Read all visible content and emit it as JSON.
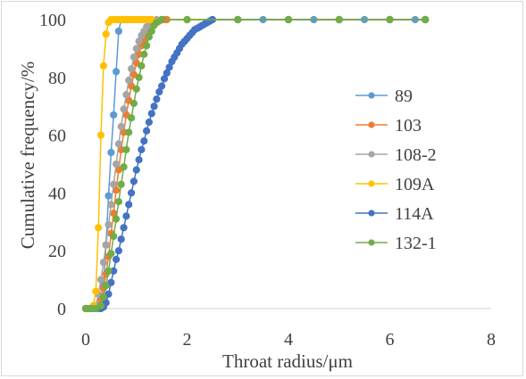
{
  "chart_data": {
    "type": "scatter",
    "xlabel": "Throat radius/μm",
    "ylabel": "Cumulative frequency/%",
    "xlim": [
      0,
      8
    ],
    "ylim": [
      0,
      100
    ],
    "x_ticks": [
      "0",
      "2",
      "4",
      "6",
      "8"
    ],
    "y_ticks": [
      "0",
      "20",
      "40",
      "60",
      "80",
      "100"
    ],
    "grid": false,
    "legend_position": "right",
    "series": [
      {
        "name": "89",
        "color": "#5b9bd5",
        "x": [
          0,
          0.05,
          0.1,
          0.15,
          0.2,
          0.25,
          0.3,
          0.35,
          0.4,
          0.45,
          0.5,
          0.55,
          0.6,
          0.65,
          0.7,
          0.75,
          0.8,
          1.0,
          1.5,
          2.0,
          2.5,
          3.0,
          3.5,
          4.0,
          4.5,
          5.0,
          5.5,
          6.0,
          6.5,
          6.7
        ],
        "y": [
          0,
          0,
          0,
          0,
          0,
          0,
          0.5,
          8,
          22,
          39,
          54,
          67,
          82,
          96,
          100,
          100,
          100,
          100,
          100,
          100,
          100,
          100,
          100,
          100,
          100,
          100,
          100,
          100,
          100,
          100
        ]
      },
      {
        "name": "103",
        "color": "#ed7d31",
        "x": [
          0,
          0.1,
          0.2,
          0.25,
          0.3,
          0.35,
          0.4,
          0.45,
          0.5,
          0.55,
          0.6,
          0.65,
          0.7,
          0.75,
          0.8,
          0.85,
          0.9,
          0.95,
          1.0,
          1.05,
          1.1,
          1.15,
          1.2,
          1.25,
          1.3,
          1.35,
          1.4,
          1.45,
          1.5,
          1.55,
          1.6,
          2.0,
          3.0,
          4.0,
          5.0,
          6.0,
          6.7
        ],
        "y": [
          0,
          0,
          0,
          1,
          3,
          7,
          12,
          18,
          26,
          33,
          41,
          48,
          55,
          61,
          67,
          72,
          77,
          81,
          85,
          88,
          91,
          93,
          95,
          96.5,
          97.5,
          98.5,
          99,
          99.5,
          100,
          100,
          100,
          100,
          100,
          100,
          100,
          100,
          100
        ]
      },
      {
        "name": "108-2",
        "color": "#a5a5a5",
        "x": [
          0,
          0.1,
          0.2,
          0.25,
          0.3,
          0.35,
          0.4,
          0.45,
          0.5,
          0.55,
          0.6,
          0.65,
          0.7,
          0.75,
          0.8,
          0.85,
          0.9,
          0.95,
          1.0,
          1.05,
          1.1,
          1.15,
          1.2,
          1.25,
          1.3,
          1.35,
          1.4,
          1.5,
          2.0,
          3.0,
          4.0,
          5.0,
          6.0,
          6.7
        ],
        "y": [
          0,
          0,
          1,
          5,
          10,
          16,
          22,
          29,
          36,
          43,
          50,
          57,
          63,
          69,
          74,
          79,
          83,
          87,
          90,
          92.5,
          94.5,
          96,
          97.5,
          98.5,
          99.2,
          99.6,
          100,
          100,
          100,
          100,
          100,
          100,
          100,
          100
        ]
      },
      {
        "name": "109A",
        "color": "#ffc000",
        "x": [
          0,
          0.1,
          0.15,
          0.2,
          0.25,
          0.3,
          0.35,
          0.4,
          0.45,
          0.5,
          0.55,
          0.6,
          0.65,
          0.7,
          0.75,
          0.8,
          0.85,
          0.9,
          0.95,
          1.0,
          1.05,
          1.1,
          1.15,
          1.2,
          1.25,
          1.3,
          1.5,
          2.0,
          3.0,
          4.0,
          5.0,
          6.0,
          6.7
        ],
        "y": [
          0,
          0,
          1,
          6,
          28,
          60,
          84,
          95,
          99,
          100,
          100,
          100,
          100,
          100,
          100,
          100,
          100,
          100,
          100,
          100,
          100,
          100,
          100,
          100,
          100,
          100,
          100,
          100,
          100,
          100,
          100,
          100,
          100
        ]
      },
      {
        "name": "114A",
        "color": "#4472c4",
        "x": [
          0,
          0.1,
          0.2,
          0.3,
          0.35,
          0.4,
          0.45,
          0.5,
          0.55,
          0.6,
          0.65,
          0.7,
          0.75,
          0.8,
          0.85,
          0.9,
          0.95,
          1.0,
          1.05,
          1.1,
          1.15,
          1.2,
          1.25,
          1.3,
          1.35,
          1.4,
          1.45,
          1.5,
          1.55,
          1.6,
          1.65,
          1.7,
          1.75,
          1.8,
          1.85,
          1.9,
          1.95,
          2.0,
          2.05,
          2.1,
          2.15,
          2.2,
          2.25,
          2.3,
          2.35,
          2.4,
          2.45,
          2.5,
          3.0,
          4.0,
          5.0,
          6.0,
          6.7
        ],
        "y": [
          0,
          0,
          0,
          0,
          0.5,
          2,
          5,
          9,
          13,
          17,
          20,
          24,
          28,
          32,
          36,
          40,
          44,
          48,
          51.5,
          55,
          58,
          61.5,
          64.5,
          67.5,
          70,
          72.5,
          75,
          77,
          79.5,
          81.5,
          83.5,
          85.5,
          87,
          88.5,
          90,
          91.5,
          92.5,
          93.5,
          94.5,
          95.5,
          96.5,
          97,
          97.5,
          98,
          98.5,
          99,
          99.5,
          100,
          100,
          100,
          100,
          100,
          100
        ]
      },
      {
        "name": "132-1",
        "color": "#70ad47",
        "x": [
          0,
          0.1,
          0.2,
          0.3,
          0.35,
          0.4,
          0.45,
          0.5,
          0.55,
          0.6,
          0.65,
          0.7,
          0.75,
          0.8,
          0.85,
          0.9,
          0.95,
          1.0,
          1.05,
          1.1,
          1.15,
          1.2,
          1.25,
          1.3,
          1.35,
          1.4,
          1.5,
          2.0,
          3.0,
          4.0,
          5.0,
          6.0,
          6.7
        ],
        "y": [
          0,
          0,
          0,
          1,
          4,
          8,
          13,
          19,
          25,
          31,
          37,
          43,
          49,
          55,
          61,
          66,
          71,
          76,
          80,
          84,
          88,
          91,
          94,
          96,
          98,
          99,
          100,
          100,
          100,
          100,
          100,
          100,
          100
        ]
      }
    ]
  }
}
